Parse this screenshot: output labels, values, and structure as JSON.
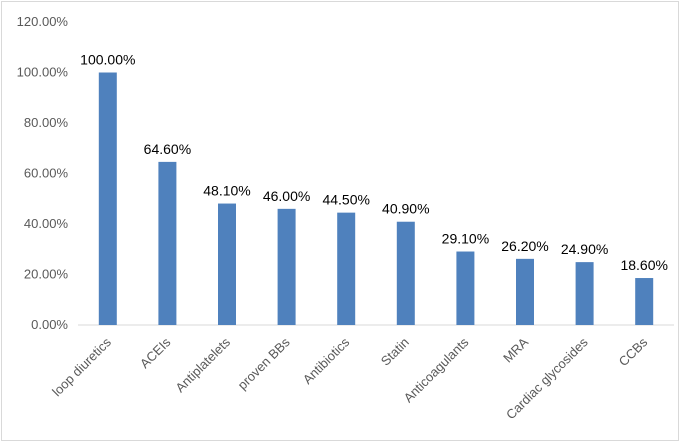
{
  "chart_data": {
    "type": "bar",
    "categories": [
      "loop diuretics",
      "ACEIs",
      "Antiplatelets",
      "proven BBs",
      "Antibiotics",
      "Statin",
      "Anticoagulants",
      "MRA",
      "Cardiac glycosides",
      "CCBs"
    ],
    "values": [
      100.0,
      64.6,
      48.1,
      46.0,
      44.5,
      40.9,
      29.1,
      26.2,
      24.9,
      18.6
    ],
    "data_labels": [
      "100.00%",
      "64.60%",
      "48.10%",
      "46.00%",
      "44.50%",
      "40.90%",
      "29.10%",
      "26.20%",
      "24.90%",
      "18.60%"
    ],
    "yticks": [
      "0.00%",
      "20.00%",
      "40.00%",
      "60.00%",
      "80.00%",
      "100.00%",
      "120.00%"
    ],
    "ylim": [
      0,
      120
    ],
    "title": "",
    "xlabel": "",
    "ylabel": "",
    "grid": false,
    "legend": "none",
    "bar_color": "#4f81bd"
  }
}
